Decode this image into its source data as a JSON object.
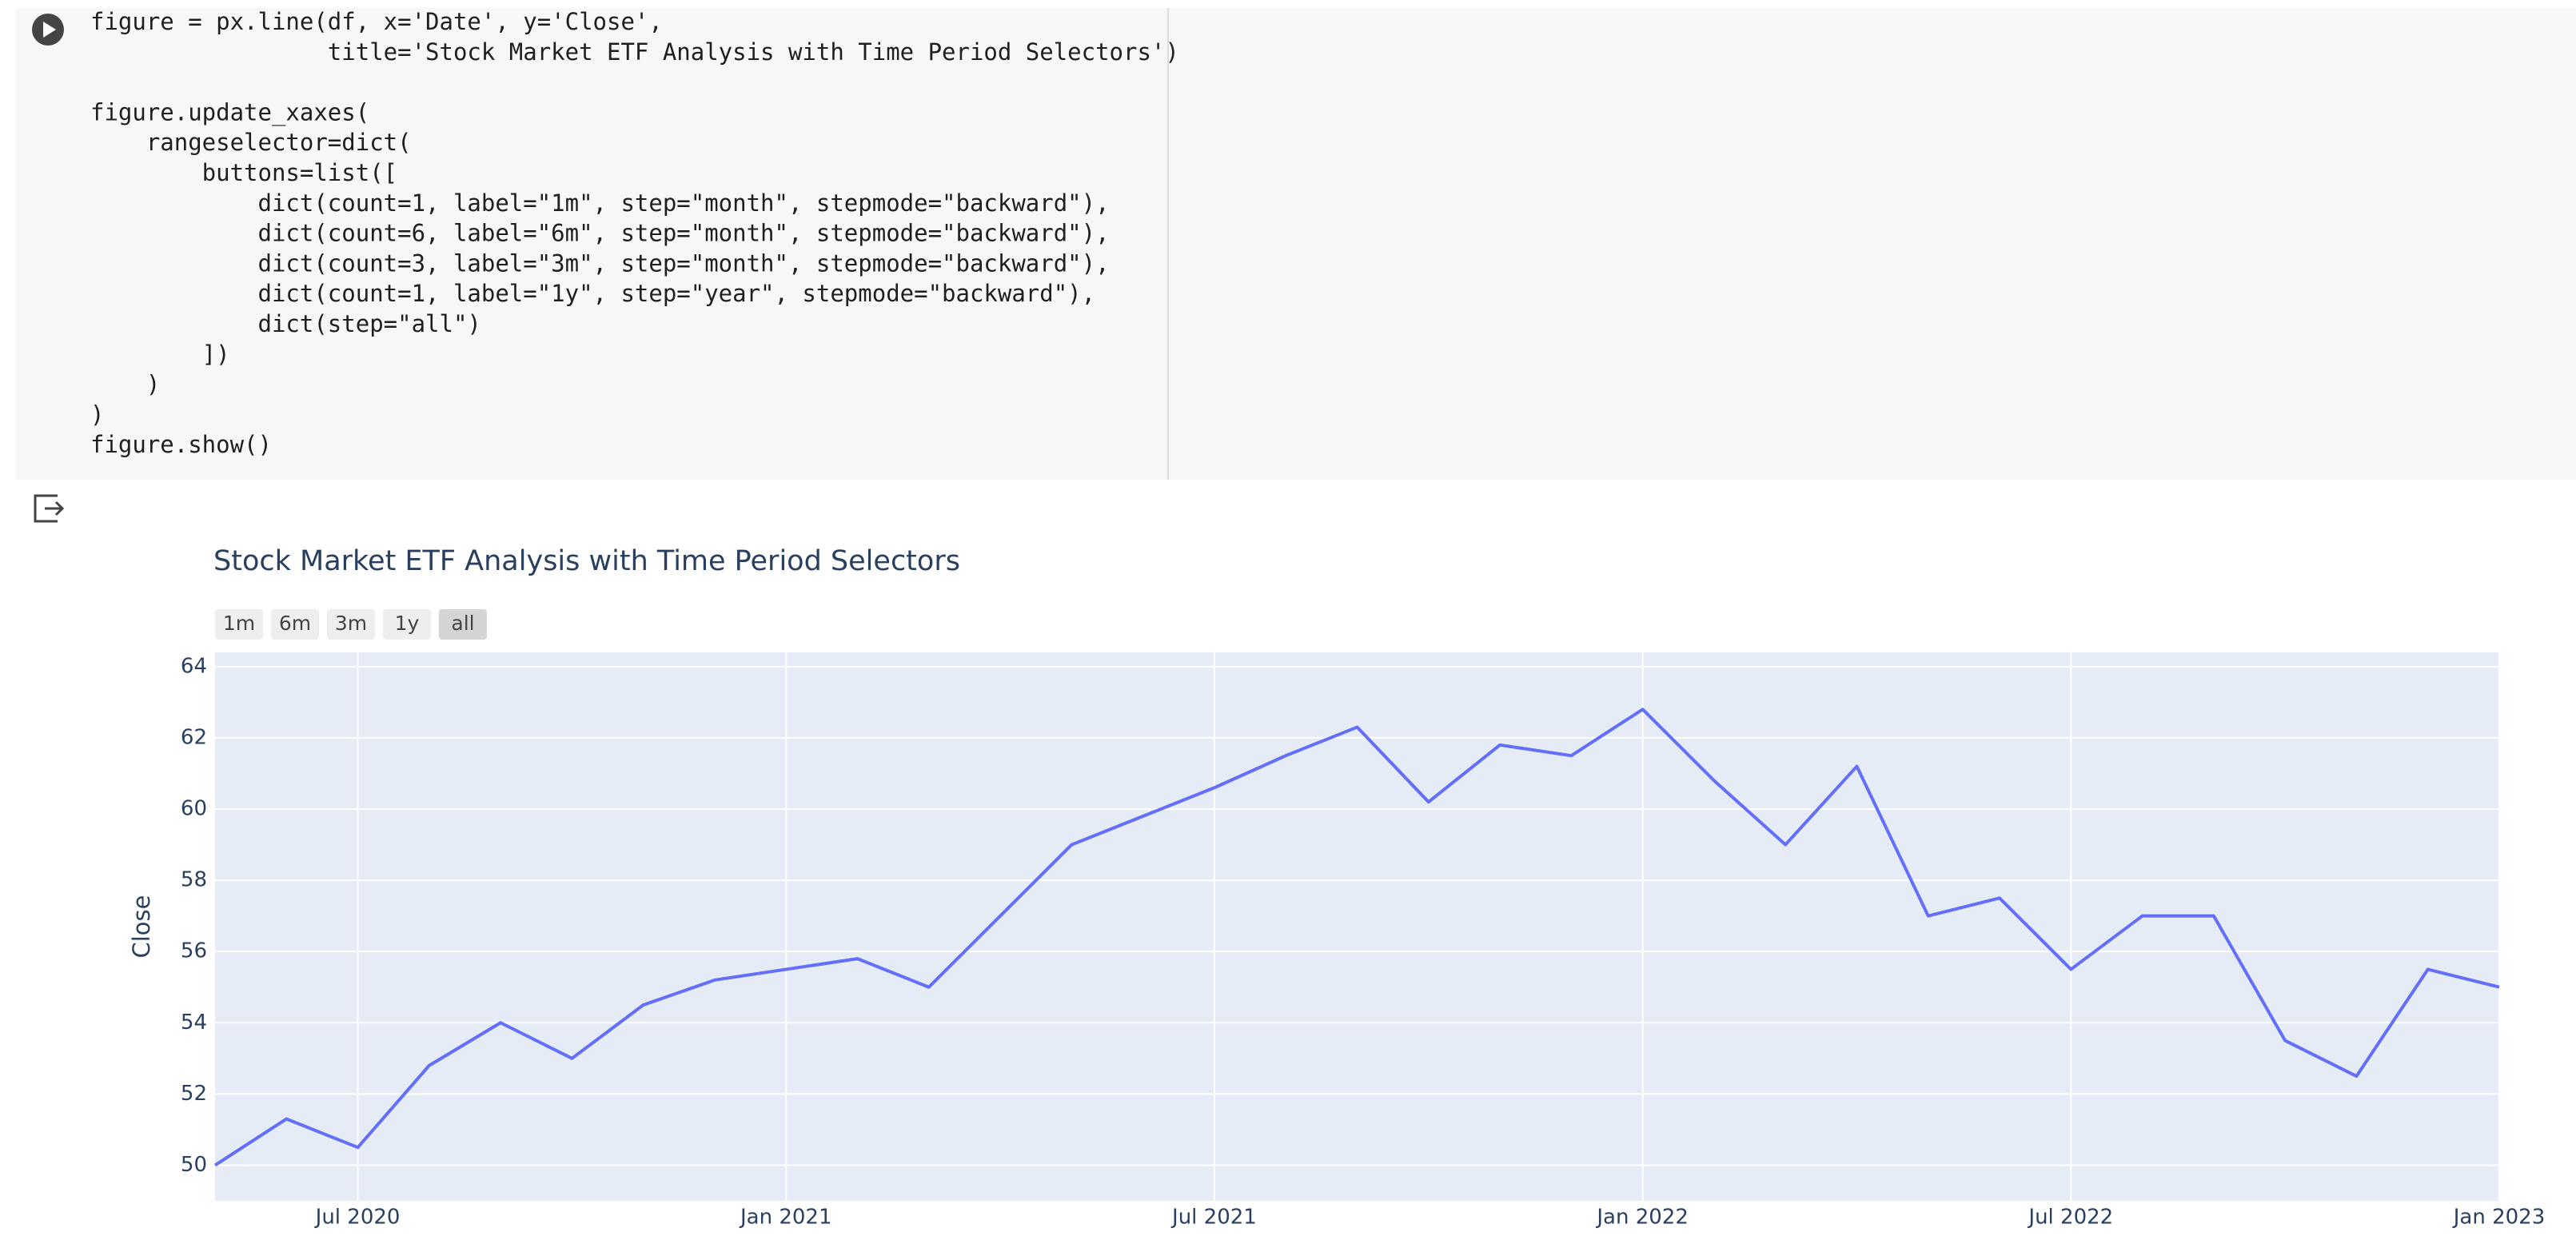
{
  "code": {
    "lines": [
      "figure = px.line(df, x='Date', y='Close',",
      "                 title='Stock Market ETF Analysis with Time Period Selectors')",
      "",
      "figure.update_xaxes(",
      "    rangeselector=dict(",
      "        buttons=list([",
      "            dict(count=1, label=\"1m\", step=\"month\", stepmode=\"backward\"),",
      "            dict(count=6, label=\"6m\", step=\"month\", stepmode=\"backward\"),",
      "            dict(count=3, label=\"3m\", step=\"month\", stepmode=\"backward\"),",
      "            dict(count=1, label=\"1y\", step=\"year\", stepmode=\"backward\"),",
      "            dict(step=\"all\")",
      "        ])",
      "    )",
      ")",
      "figure.show()"
    ]
  },
  "chart_data": {
    "type": "line",
    "title": "Stock Market ETF Analysis with Time Period Selectors",
    "y_label": "Close",
    "range_buttons": [
      "1m",
      "6m",
      "3m",
      "1y",
      "all"
    ],
    "active_button": "all",
    "x": [
      "2020-05",
      "2020-06",
      "2020-07",
      "2020-08",
      "2020-09",
      "2020-10",
      "2020-11",
      "2020-12",
      "2021-01",
      "2021-02",
      "2021-03",
      "2021-04",
      "2021-05",
      "2021-06",
      "2021-07",
      "2021-08",
      "2021-09",
      "2021-10",
      "2021-11",
      "2021-12",
      "2022-01",
      "2022-02",
      "2022-03",
      "2022-04",
      "2022-05",
      "2022-06",
      "2022-07",
      "2022-08",
      "2022-09",
      "2022-10",
      "2022-11",
      "2022-12",
      "2023-01"
    ],
    "series": [
      {
        "name": "Close",
        "color": "#636efa",
        "values": [
          50.0,
          51.3,
          50.5,
          52.8,
          54.0,
          53.0,
          54.5,
          55.2,
          55.5,
          55.8,
          55.0,
          57.0,
          59.0,
          59.8,
          60.6,
          61.5,
          62.3,
          60.2,
          61.8,
          61.5,
          62.8,
          60.8,
          59.0,
          61.2,
          57.0,
          57.5,
          55.5,
          57.0,
          57.0,
          53.5,
          52.5,
          55.5,
          55.0
        ]
      }
    ],
    "xlim": [
      "2020-05",
      "2023-01"
    ],
    "xticks": [
      {
        "value": "2020-07",
        "label": "Jul 2020"
      },
      {
        "value": "2021-01",
        "label": "Jan 2021"
      },
      {
        "value": "2021-07",
        "label": "Jul 2021"
      },
      {
        "value": "2022-01",
        "label": "Jan 2022"
      },
      {
        "value": "2022-07",
        "label": "Jul 2022"
      },
      {
        "value": "2023-01",
        "label": "Jan 2023"
      }
    ],
    "ylim": [
      49,
      64.4
    ],
    "yticks": [
      50,
      52,
      54,
      56,
      58,
      60,
      62,
      64
    ],
    "grid": true
  }
}
